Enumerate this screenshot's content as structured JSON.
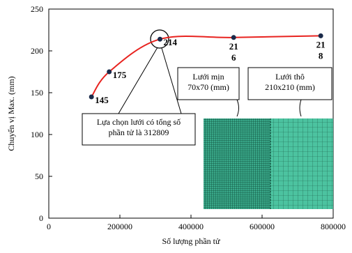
{
  "chart_data": {
    "type": "line",
    "x_label": "Số lượng phần tử",
    "y_label": "Chuyển vị Max. (mm)",
    "series": [
      {
        "color": "#e8231f",
        "x": [
          120000,
          170000,
          312809,
          520000,
          765000
        ],
        "values": [
          145,
          175,
          214,
          216,
          218
        ],
        "value_labels": [
          "145",
          "175",
          "214",
          "21\n6",
          "21\n8"
        ]
      }
    ],
    "xlim": [
      0,
      800000
    ],
    "xticks": [
      0,
      200000,
      400000,
      600000,
      800000
    ],
    "ylim": [
      0,
      250
    ],
    "yticks": [
      0,
      50,
      100,
      150,
      200,
      250
    ],
    "annotations": [
      "Lựa chọn lưới có tổng số phần tử là 312809",
      "Lưới mịn\n70x70 (mm)",
      "Lưới thô\n210x210 (mm)"
    ]
  }
}
